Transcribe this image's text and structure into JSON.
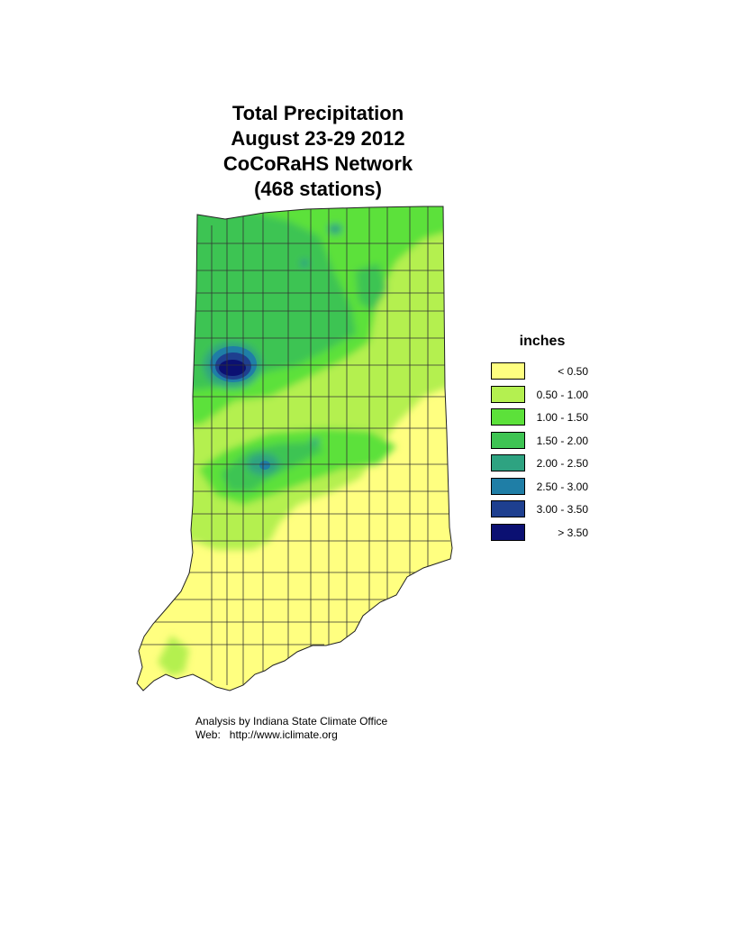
{
  "title": {
    "line1": "Total Precipitation",
    "line2": "August 23-29 2012",
    "line3": "CoCoRaHS Network",
    "line4": "(468 stations)"
  },
  "legend": {
    "title": "inches",
    "items": [
      {
        "label": "< 0.50",
        "color": "#ffff80"
      },
      {
        "label": "0.50 - 1.00",
        "color": "#b4f050"
      },
      {
        "label": "1.00 - 1.50",
        "color": "#5ce13a"
      },
      {
        "label": "1.50 - 2.00",
        "color": "#3ec453"
      },
      {
        "label": "2.00 - 2.50",
        "color": "#2ea381"
      },
      {
        "label": "2.50 - 3.00",
        "color": "#1f7ea6"
      },
      {
        "label": "3.00 - 3.50",
        "color": "#1e3f8f"
      },
      {
        "label": "> 3.50",
        "color": "#0b1072"
      }
    ]
  },
  "credit": {
    "line1": "Analysis by Indiana State Climate Office",
    "line2": "Web:   http://www.iclimate.org"
  },
  "map": {
    "region": "Indiana",
    "boundary_color": "#333333"
  }
}
